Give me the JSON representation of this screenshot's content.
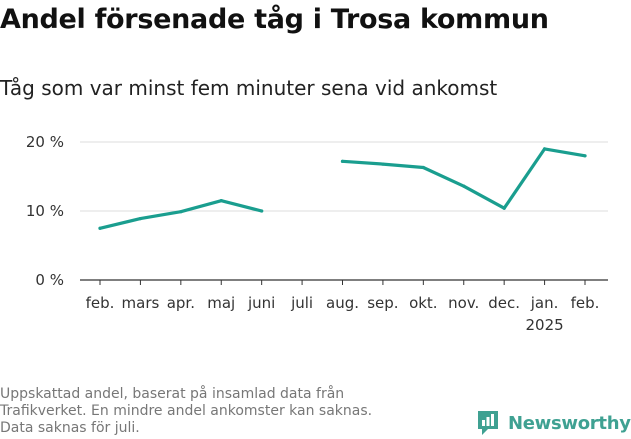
{
  "chart_data": {
    "type": "line",
    "title": "Andel försenade tåg i Trosa kommun",
    "subtitle": "Tåg som var minst fem minuter sena vid ankomst",
    "categories": [
      "feb.",
      "mars",
      "apr.",
      "maj",
      "juni",
      "juli",
      "aug.",
      "sep.",
      "okt.",
      "nov.",
      "dec.",
      "jan.",
      "feb."
    ],
    "category_sublabels": [
      "",
      "",
      "",
      "",
      "",
      "",
      "",
      "",
      "",
      "",
      "",
      "2025",
      ""
    ],
    "series": [
      {
        "values": [
          7.5,
          8.9,
          9.9,
          11.5,
          10.0,
          null,
          17.2,
          16.8,
          16.3,
          13.6,
          10.4,
          19.0,
          18.0
        ],
        "color": "#1a9e8f"
      }
    ],
    "y_ticks": [
      0,
      10,
      20
    ],
    "y_tick_labels": [
      "0 %",
      "10 %",
      "20 %"
    ],
    "ylim": [
      0,
      20
    ],
    "grid": true,
    "xlabel": "",
    "ylabel": ""
  },
  "footnote": [
    "Uppskattad andel, baserat på insamlad data från",
    "Trafikverket. En mindre andel ankomster kan saknas.",
    "Data saknas för juli."
  ],
  "brand": {
    "name": "Newsworthy",
    "icon": "bar-chart-logo-icon",
    "color": "#3fa192"
  }
}
